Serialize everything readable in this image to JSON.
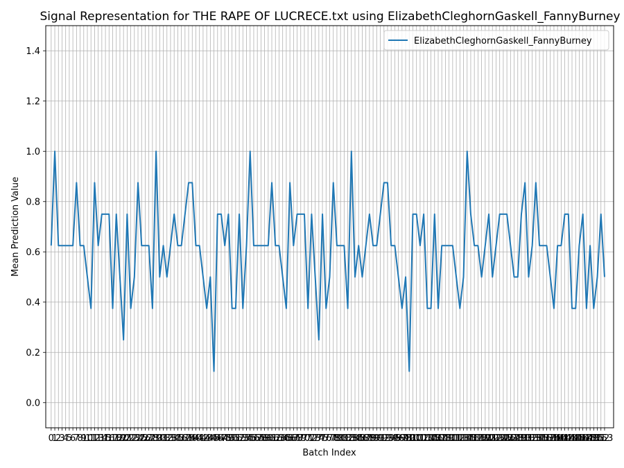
{
  "chart_data": {
    "type": "line",
    "title": "Signal Representation for THE RAPE OF LUCRECE.txt using ElizabethCleghornGaskell_FannyBurney",
    "xlabel": "Batch Index",
    "ylabel": "Mean Prediction Value",
    "xlim": [
      -1.5,
      155.5
    ],
    "ylim": [
      -0.1,
      1.5
    ],
    "yticks": [
      0.0,
      0.2,
      0.4,
      0.6,
      0.8,
      1.0,
      1.2,
      1.4
    ],
    "grid": true,
    "legend_position": "top-right",
    "series": [
      {
        "name": "ElizabethCleghornGaskell_FannyBurney",
        "color": "#1f77b4",
        "x": [
          0,
          1,
          2,
          3,
          4,
          5,
          6,
          7,
          8,
          9,
          10,
          11,
          12,
          13,
          14,
          15,
          16,
          17,
          18,
          19,
          20,
          21,
          22,
          23,
          24,
          25,
          26,
          27,
          28,
          29,
          30,
          31,
          32,
          33,
          34,
          35,
          36,
          37,
          38,
          39,
          40,
          41,
          42,
          43,
          44,
          45,
          46,
          47,
          48,
          49,
          50,
          51,
          52,
          53,
          54,
          55,
          56,
          57,
          58,
          59,
          60,
          61,
          62,
          63,
          64,
          65,
          66,
          67,
          68,
          69,
          70,
          71,
          72,
          73,
          74,
          75,
          76,
          77,
          78,
          79,
          80,
          81,
          82,
          83,
          84,
          85,
          86,
          87,
          88,
          89,
          90,
          91,
          92,
          93,
          94,
          95,
          96,
          97,
          98,
          99,
          100,
          101,
          102,
          103,
          104,
          105,
          106,
          107,
          108,
          109,
          110,
          111,
          112,
          113,
          114,
          115,
          116,
          117,
          118,
          119,
          120,
          121,
          122,
          123,
          124,
          125,
          126,
          127,
          128,
          129,
          130,
          131,
          132,
          133,
          134,
          135,
          136,
          137,
          138,
          139,
          140,
          141,
          142,
          143,
          144,
          145,
          146,
          147,
          148,
          149,
          150,
          151,
          152,
          153
        ],
        "values": [
          0.625,
          1.0,
          0.625,
          0.625,
          0.625,
          0.625,
          0.625,
          0.875,
          0.625,
          0.625,
          0.5,
          0.375,
          0.875,
          0.625,
          0.75,
          0.75,
          0.75,
          0.375,
          0.75,
          0.5,
          0.25,
          0.75,
          0.375,
          0.5,
          0.875,
          0.625,
          0.625,
          0.625,
          0.375,
          1.0,
          0.5,
          0.625,
          0.5,
          0.625,
          0.75,
          0.625,
          0.625,
          0.75,
          0.875,
          0.875,
          0.625,
          0.625,
          0.5,
          0.375,
          0.5,
          0.125,
          0.75,
          0.75,
          0.625,
          0.75,
          0.375,
          0.375,
          0.75,
          0.375,
          0.625,
          1.0,
          0.625,
          0.625,
          0.625,
          0.625,
          0.625,
          0.875,
          0.625,
          0.625,
          0.5,
          0.375,
          0.875,
          0.625,
          0.75,
          0.75,
          0.75,
          0.375,
          0.75,
          0.5,
          0.25,
          0.75,
          0.375,
          0.5,
          0.875,
          0.625,
          0.625,
          0.625,
          0.375,
          1.0,
          0.5,
          0.625,
          0.5,
          0.625,
          0.75,
          0.625,
          0.625,
          0.75,
          0.875,
          0.875,
          0.625,
          0.625,
          0.5,
          0.375,
          0.5,
          0.125,
          0.75,
          0.75,
          0.625,
          0.75,
          0.375,
          0.375,
          0.75,
          0.375,
          0.625,
          0.625,
          0.625,
          0.625,
          0.5,
          0.375,
          0.5,
          1.0,
          0.75,
          0.625,
          0.625,
          0.5,
          0.625,
          0.75,
          0.5,
          0.625,
          0.75,
          0.75,
          0.75,
          0.625,
          0.5,
          0.5,
          0.75,
          0.875,
          0.5,
          0.625,
          0.875,
          0.625,
          0.625,
          0.625,
          0.5,
          0.375,
          0.625,
          0.625,
          0.75,
          0.75,
          0.375,
          0.375,
          0.625,
          0.75,
          0.375,
          0.625,
          0.375,
          0.5,
          0.75,
          0.5
        ]
      }
    ]
  }
}
